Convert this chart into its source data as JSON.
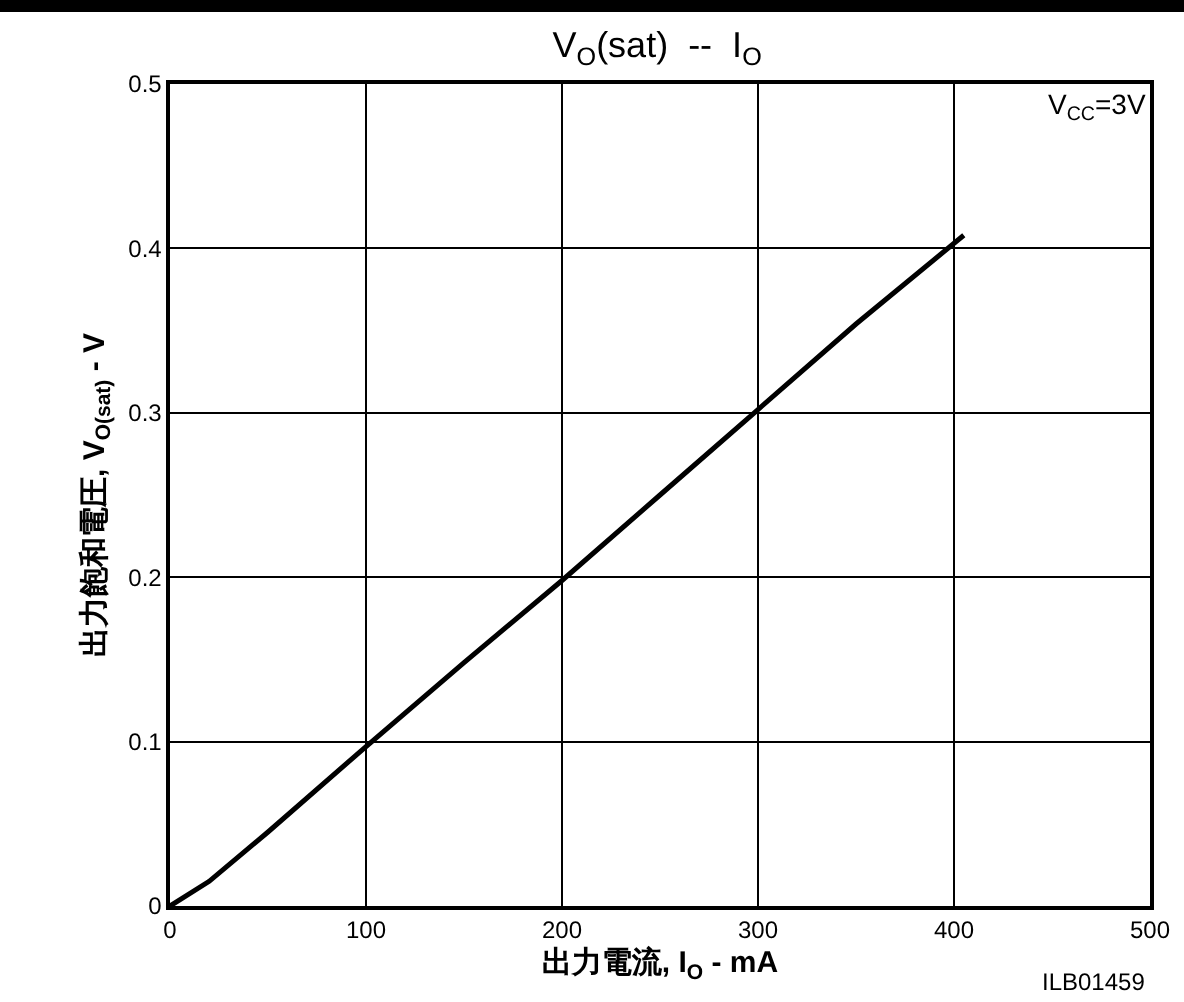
{
  "chart_data": {
    "type": "line",
    "title": "V$_{O}$(sat)  --  I$_{O}$",
    "xlabel": "出力電流, I$_{O}$ - mA",
    "ylabel": "出力飽和電圧, V$_{O(sat)}$ - V",
    "annotations": [
      "V$_{CC}$=3V",
      "ILB01459"
    ],
    "x": [
      0,
      20,
      50,
      100,
      150,
      200,
      250,
      300,
      350,
      405
    ],
    "series": [
      {
        "color": "#000000",
        "values": [
          0,
          0.015,
          0.045,
          0.097,
          0.148,
          0.198,
          0.25,
          0.302,
          0.354,
          0.408
        ]
      }
    ],
    "xlim": [
      0,
      500
    ],
    "xticks": [
      0,
      100,
      200,
      300,
      400,
      500
    ],
    "ylim": [
      0,
      0.5
    ],
    "yticks": [
      0,
      0.1,
      0.2,
      0.3,
      0.4,
      0.5
    ],
    "grid": true,
    "marker": "none",
    "line_style": "solid"
  }
}
